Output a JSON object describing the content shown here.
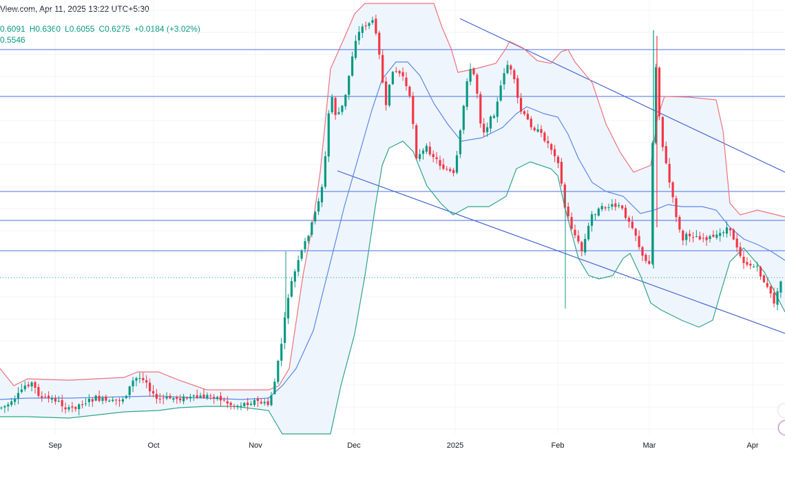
{
  "header": {
    "source_date": "View.com, Apr 11, 2025 13:22 UTC+5:30",
    "ohlc": {
      "open": "0.6091",
      "high": "H0.6360",
      "low": "L0.6055",
      "close": "C0.6275",
      "change": "+0.0184 (+3.02%)"
    },
    "indicator_value": "0.5546"
  },
  "colors": {
    "up": "#089981",
    "down": "#f23645",
    "basis": "#5b86e5",
    "upper": "#f0707a",
    "lower": "#2ea38a",
    "band_fill": "#eef5fd",
    "hline": "#4a6fe0",
    "trend": "#3d5ccf",
    "grid": "#f0f3fa"
  },
  "chart_data": {
    "type": "candlestick",
    "xlabels": [
      "Sep",
      "Oct",
      "Nov",
      "Dec",
      "2025",
      "Feb",
      "Mar",
      "Apr"
    ],
    "visible_last_price_dotted": true,
    "horizontal_levels": 5,
    "trend_lines": 2,
    "indicator": "bollinger-bands",
    "y_axis_visible": false
  }
}
